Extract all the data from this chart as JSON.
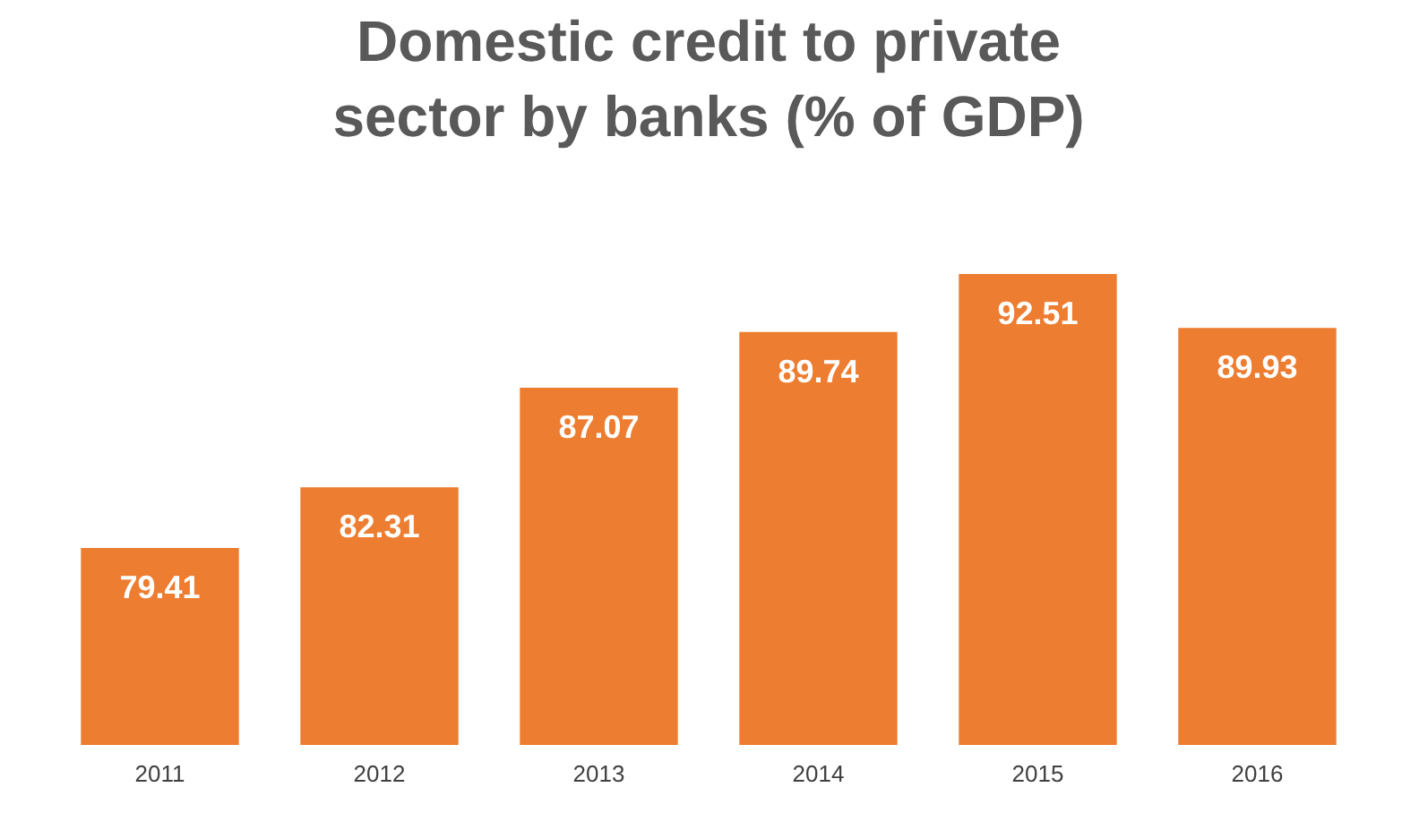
{
  "chart_data": {
    "type": "bar",
    "title": "Domestic credit to private sector by banks (% of GDP)",
    "categories": [
      "2011",
      "2012",
      "2013",
      "2014",
      "2015",
      "2016"
    ],
    "values": [
      79.41,
      82.31,
      87.07,
      89.74,
      92.51,
      89.93
    ],
    "color": "#ed7d31",
    "ylim": [
      70,
      92.51
    ],
    "data_labels": true
  }
}
